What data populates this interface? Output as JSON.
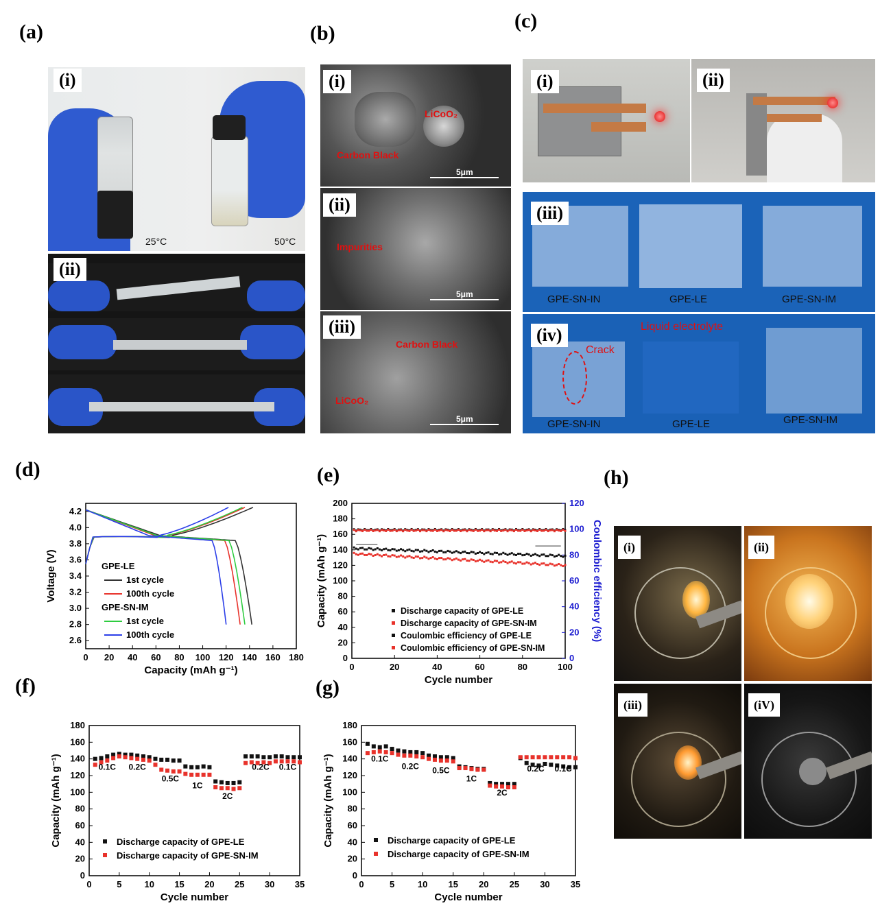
{
  "panels": {
    "a": {
      "label": "(a)",
      "sub1": "(i)",
      "sub2": "(ii)",
      "temp_left": "25°C",
      "temp_right": "50°C"
    },
    "b": {
      "label": "(b)",
      "sub1": "(i)",
      "sub2": "(ii)",
      "sub3": "(iii)",
      "scale": "5μm",
      "annot_licoo2": "LiCoO₂",
      "annot_carbon": "Carbon Black",
      "annot_impurities": "Impurities",
      "annot_carbon2": "Carbon Black",
      "annot_licoo2_2": "LiCoO₂"
    },
    "c": {
      "label": "(c)",
      "sub1": "(i)",
      "sub2": "(ii)",
      "sub3": "(iii)",
      "sub4": "(iv)",
      "samples": [
        "GPE-SN-IN",
        "GPE-LE",
        "GPE-SN-IM"
      ],
      "crack": "Crack",
      "liquid": "Liquid electrolyte"
    },
    "d": {
      "label": "(d)"
    },
    "e": {
      "label": "(e)"
    },
    "f": {
      "label": "(f)"
    },
    "g": {
      "label": "(g)"
    },
    "h": {
      "label": "(h)",
      "sub1": "(i)",
      "sub2": "(ii)",
      "sub3": "(iii)",
      "sub4": "(iV)"
    }
  },
  "chart_data": [
    {
      "id": "d",
      "type": "line",
      "xlabel": "Capacity (mAh g⁻¹)",
      "ylabel": "Voltage (V)",
      "xlim": [
        0,
        180
      ],
      "ylim": [
        2.5,
        4.3
      ],
      "xticks": [
        0,
        20,
        40,
        60,
        80,
        100,
        120,
        140,
        160,
        180
      ],
      "yticks": [
        2.6,
        2.8,
        3.0,
        3.2,
        3.4,
        3.6,
        3.8,
        4.0,
        4.2
      ],
      "legend": [
        {
          "text": "GPE-LE",
          "kind": "header"
        },
        {
          "text": "1st cycle",
          "color": "#333333"
        },
        {
          "text": "100th cycle",
          "color": "#e8322b"
        },
        {
          "text": "GPE-SN-IM",
          "kind": "header"
        },
        {
          "text": "1st cycle",
          "color": "#2ecc40"
        },
        {
          "text": "100th cycle",
          "color": "#2b3ee8"
        }
      ],
      "series": [
        {
          "name": "GPE-LE 1st cycle",
          "color": "#333333",
          "charge_end": 143,
          "discharge_end": 142
        },
        {
          "name": "GPE-LE 100th cycle",
          "color": "#e8322b",
          "charge_end": 136,
          "discharge_end": 132
        },
        {
          "name": "GPE-SN-IM 1st cycle",
          "color": "#2ecc40",
          "charge_end": 134,
          "discharge_end": 136
        },
        {
          "name": "GPE-SN-IM 100th cycle",
          "color": "#2b3ee8",
          "charge_end": 122,
          "discharge_end": 120
        }
      ],
      "plateau_voltage": 3.9,
      "charge_start_voltage": 4.22,
      "end_voltage": 4.25,
      "cutoff_voltage": 2.8
    },
    {
      "id": "e",
      "type": "scatter",
      "xlabel": "Cycle number",
      "ylabel": "Capacity (mAh g⁻¹)",
      "y2label": "Coulombic efficiency (%)",
      "xlim": [
        0,
        100
      ],
      "ylim": [
        0,
        200
      ],
      "y2lim": [
        0,
        120
      ],
      "xticks": [
        0,
        20,
        40,
        60,
        80,
        100
      ],
      "yticks": [
        0,
        20,
        40,
        60,
        80,
        100,
        120,
        140,
        160,
        180,
        200
      ],
      "y2ticks": [
        0,
        20,
        40,
        60,
        80,
        100,
        120
      ],
      "legend": [
        {
          "text": "Discharge capacity of GPE-LE",
          "color": "#111111"
        },
        {
          "text": "Discharge capacity of GPE-SN-IM",
          "color": "#e8322b"
        },
        {
          "text": "Coulombic efficiency of GPE-LE",
          "color": "#111111"
        },
        {
          "text": "Coulombic efficiency of GPE-SN-IM",
          "color": "#e8322b"
        }
      ],
      "series": [
        {
          "name": "Discharge capacity of GPE-LE",
          "axis": "left",
          "color": "#111111",
          "start": 142,
          "end": 132
        },
        {
          "name": "Discharge capacity of GPE-SN-IM",
          "axis": "left",
          "color": "#e8322b",
          "start": 135,
          "end": 120
        },
        {
          "name": "Coulombic efficiency of GPE-LE",
          "axis": "right",
          "color": "#111111",
          "value": 99.5
        },
        {
          "name": "Coulombic efficiency of GPE-SN-IM",
          "axis": "right",
          "color": "#e8322b",
          "value": 99
        }
      ]
    },
    {
      "id": "f",
      "type": "scatter",
      "xlabel": "Cycle number",
      "ylabel": "Capacity (mAh g⁻¹)",
      "xlim": [
        0,
        35
      ],
      "ylim": [
        0,
        180
      ],
      "xticks": [
        0,
        5,
        10,
        15,
        20,
        25,
        30,
        35
      ],
      "yticks": [
        0,
        20,
        40,
        60,
        80,
        100,
        120,
        140,
        160,
        180
      ],
      "rate_labels": [
        {
          "text": "0.1C",
          "x": 3,
          "y": 127
        },
        {
          "text": "0.2C",
          "x": 8,
          "y": 127
        },
        {
          "text": "0.5C",
          "x": 13.5,
          "y": 113
        },
        {
          "text": "1C",
          "x": 18,
          "y": 105
        },
        {
          "text": "2C",
          "x": 23,
          "y": 92
        },
        {
          "text": "0.2C",
          "x": 28.5,
          "y": 127
        },
        {
          "text": "0.1C",
          "x": 33,
          "y": 127
        }
      ],
      "legend": [
        {
          "text": "Discharge capacity of GPE-LE",
          "color": "#111111"
        },
        {
          "text": "Discharge capacity of GPE-SN-IM",
          "color": "#e8322b"
        }
      ],
      "series": [
        {
          "name": "Discharge capacity of GPE-LE",
          "color": "#111111",
          "values": [
            140,
            141,
            143,
            145,
            146,
            145,
            145,
            144,
            143,
            142,
            140,
            139,
            139,
            138,
            138,
            131,
            130,
            130,
            131,
            130,
            113,
            112,
            111,
            111,
            112,
            143,
            143,
            143,
            142,
            142,
            143,
            143,
            142,
            142,
            142
          ]
        },
        {
          "name": "Discharge capacity of GPE-SN-IM",
          "color": "#e8322b",
          "values": [
            133,
            136,
            138,
            141,
            143,
            142,
            141,
            140,
            139,
            138,
            133,
            127,
            126,
            125,
            125,
            122,
            121,
            121,
            121,
            121,
            106,
            105,
            105,
            104,
            105,
            135,
            136,
            135,
            136,
            135,
            137,
            137,
            137,
            137,
            136
          ]
        }
      ]
    },
    {
      "id": "g",
      "type": "scatter",
      "xlabel": "Cycle number",
      "ylabel": "Capacity (mAh g⁻¹)",
      "xlim": [
        0,
        35
      ],
      "ylim": [
        0,
        180
      ],
      "xticks": [
        0,
        5,
        10,
        15,
        20,
        25,
        30,
        35
      ],
      "yticks": [
        0,
        20,
        40,
        60,
        80,
        100,
        120,
        140,
        160,
        180
      ],
      "rate_labels": [
        {
          "text": "0.1C",
          "x": 3,
          "y": 137
        },
        {
          "text": "0.2C",
          "x": 8,
          "y": 128
        },
        {
          "text": "0.5C",
          "x": 13,
          "y": 123
        },
        {
          "text": "1C",
          "x": 18,
          "y": 113
        },
        {
          "text": "2C",
          "x": 23,
          "y": 96
        },
        {
          "text": "0.2C",
          "x": 28.5,
          "y": 125
        },
        {
          "text": "0.1C",
          "x": 33,
          "y": 125
        }
      ],
      "legend": [
        {
          "text": "Discharge capacity of GPE-LE",
          "color": "#111111"
        },
        {
          "text": "Discharge capacity of GPE-SN-IM",
          "color": "#e8322b"
        }
      ],
      "series": [
        {
          "name": "Discharge capacity of GPE-LE",
          "color": "#111111",
          "values": [
            158,
            155,
            154,
            155,
            152,
            150,
            149,
            148,
            148,
            147,
            144,
            143,
            142,
            142,
            141,
            131,
            130,
            129,
            128,
            128,
            111,
            110,
            110,
            110,
            110,
            141,
            135,
            133,
            132,
            134,
            133,
            132,
            131,
            130,
            130
          ]
        },
        {
          "name": "Discharge capacity of GPE-SN-IM",
          "color": "#e8322b",
          "values": [
            147,
            148,
            149,
            148,
            147,
            145,
            144,
            144,
            143,
            142,
            140,
            139,
            138,
            138,
            137,
            129,
            129,
            128,
            127,
            127,
            108,
            107,
            107,
            106,
            106,
            142,
            142,
            142,
            142,
            142,
            142,
            142,
            142,
            142,
            141
          ]
        }
      ]
    }
  ]
}
